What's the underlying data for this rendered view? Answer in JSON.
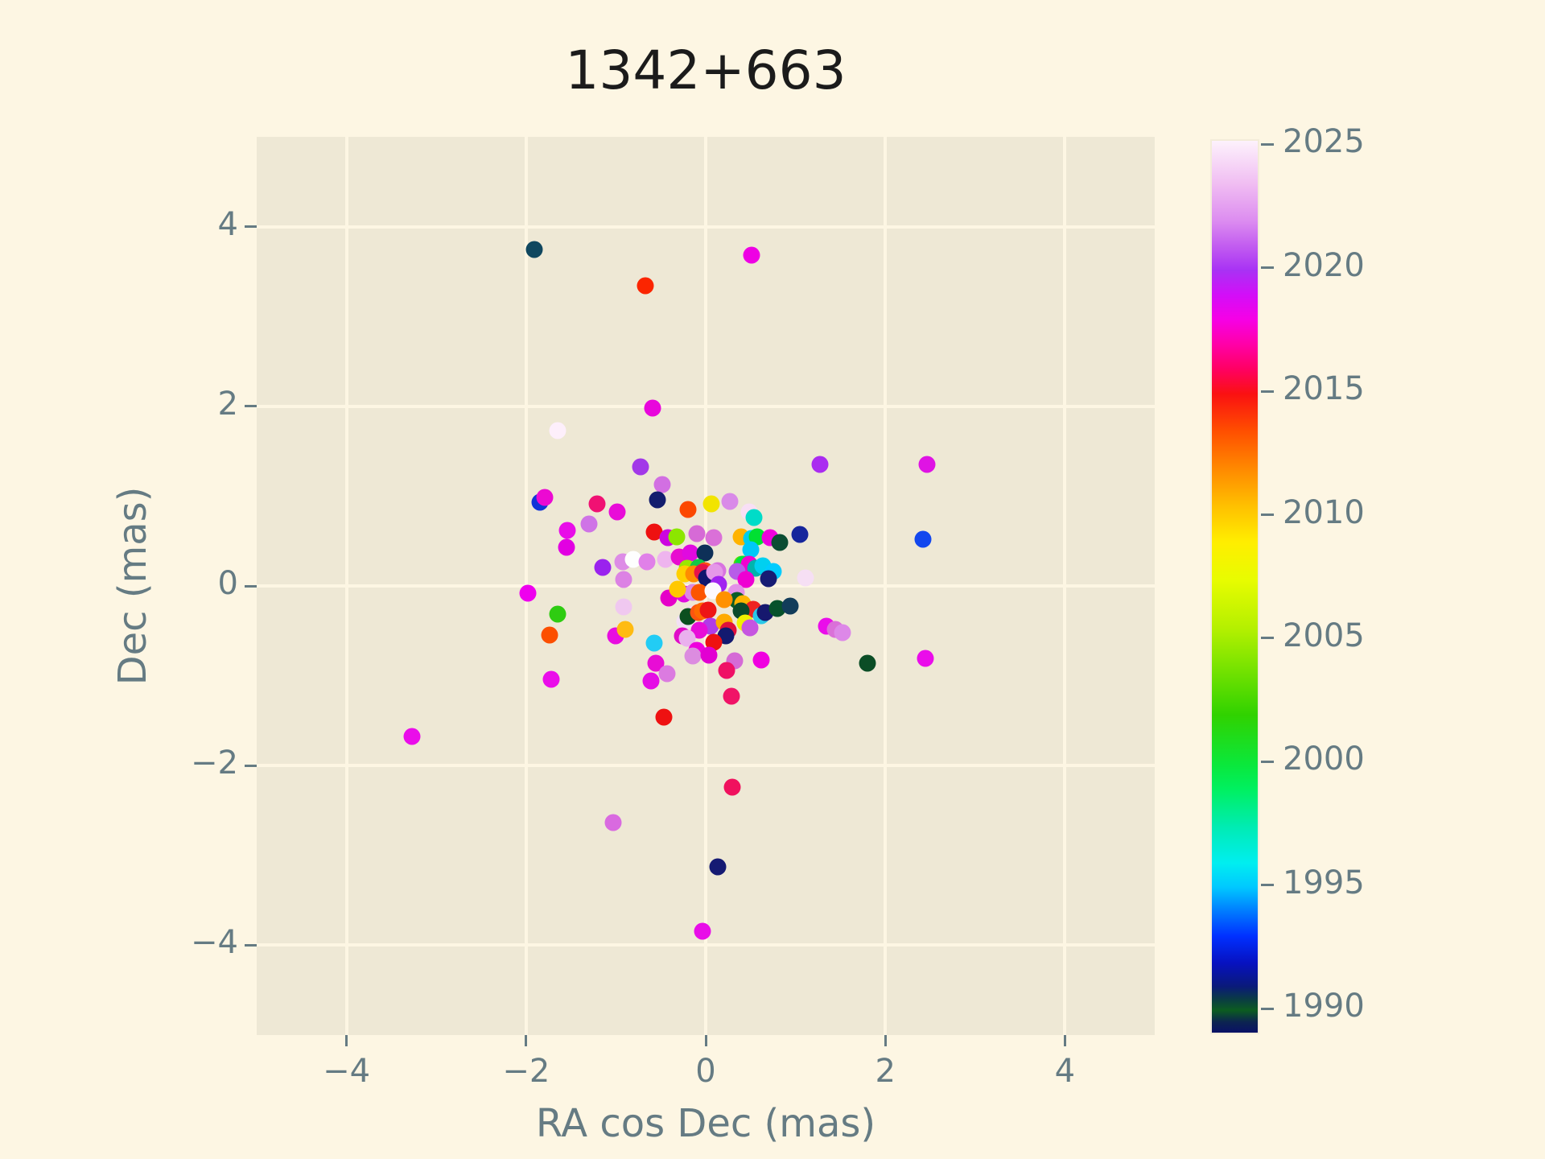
{
  "title": "1342+663",
  "style": {
    "figure_bg": "#fdf6e3",
    "axes_bg": "#eee8d5",
    "grid_color": "#fdf6e3",
    "text_color": "#657b83",
    "title_color": "#1b1b1b"
  },
  "chart_data": {
    "type": "scatter",
    "title": "1342+663",
    "xlabel": "RA cos Dec (mas)",
    "ylabel": "Dec (mas)",
    "xlim": [
      -5,
      5
    ],
    "ylim": [
      -5,
      5
    ],
    "x_ticks": [
      -4,
      -2,
      0,
      2,
      4
    ],
    "y_ticks": [
      -4,
      -2,
      0,
      2,
      4
    ],
    "grid": true,
    "legend_position": "none",
    "marker_size_px": 21,
    "colorbar": {
      "ticks": [
        2025,
        2020,
        2015,
        2010,
        2005,
        2000,
        1995,
        1990
      ],
      "range": [
        1989.1,
        2025.2
      ],
      "gradient_stops": [
        [
          0,
          "#0a1166"
        ],
        [
          1.2,
          "#0c2450"
        ],
        [
          2.5,
          "#0c5c20"
        ],
        [
          3.8,
          "#0a3a46"
        ],
        [
          5.2,
          "#0a1a7a"
        ],
        [
          7.8,
          "#0711c0"
        ],
        [
          10.8,
          "#0030ff"
        ],
        [
          13.5,
          "#0078ff"
        ],
        [
          16.3,
          "#00c8ff"
        ],
        [
          19,
          "#00eef0"
        ],
        [
          23,
          "#00ecb4"
        ],
        [
          27.3,
          "#00f060"
        ],
        [
          30,
          "#0ae83c"
        ],
        [
          35.6,
          "#30d200"
        ],
        [
          41.2,
          "#7ce400"
        ],
        [
          45.3,
          "#b4f000"
        ],
        [
          50.8,
          "#e8fc00"
        ],
        [
          55,
          "#ffee00"
        ],
        [
          59.2,
          "#ffbe00"
        ],
        [
          63.3,
          "#ff8800"
        ],
        [
          67.5,
          "#ff4e00"
        ],
        [
          71.6,
          "#fa1111"
        ],
        [
          74.4,
          "#ff0062"
        ],
        [
          77.2,
          "#ff00a8"
        ],
        [
          80,
          "#f600e6"
        ],
        [
          82.7,
          "#d30ef8"
        ],
        [
          85.5,
          "#a832f4"
        ],
        [
          88.3,
          "#c35ef0"
        ],
        [
          91,
          "#dc8cf0"
        ],
        [
          95.1,
          "#f0bcf2"
        ],
        [
          100,
          "#fdf2fc"
        ]
      ]
    },
    "points": [
      [
        -1.91,
        3.75,
        "#10475f"
      ],
      [
        -0.67,
        3.34,
        "#fb2500"
      ],
      [
        0.51,
        3.68,
        "#ee00e4"
      ],
      [
        -0.59,
        1.98,
        "#e806dc"
      ],
      [
        -1.65,
        1.73,
        "#fdeffb"
      ],
      [
        -0.73,
        1.33,
        "#a238e8"
      ],
      [
        1.27,
        1.35,
        "#aa2cf0"
      ],
      [
        2.46,
        1.35,
        "#df13e4"
      ],
      [
        -0.48,
        1.13,
        "#d26fe2"
      ],
      [
        -1.85,
        0.93,
        "#1134d8"
      ],
      [
        -1.79,
        0.99,
        "#ec0ad2"
      ],
      [
        -1.21,
        0.91,
        "#f01173"
      ],
      [
        -0.54,
        0.96,
        "#131d6e"
      ],
      [
        -0.99,
        0.82,
        "#e80cd8"
      ],
      [
        -0.2,
        0.85,
        "#fc4800"
      ],
      [
        0.06,
        0.91,
        "#f2e400"
      ],
      [
        0.27,
        0.94,
        "#d98ae8"
      ],
      [
        -1.3,
        0.69,
        "#cf73e6"
      ],
      [
        -1.54,
        0.62,
        "#e80de8"
      ],
      [
        -1.55,
        0.43,
        "#e200e2"
      ],
      [
        0.48,
        0.82,
        "#f8dff5"
      ],
      [
        0.54,
        0.76,
        "#00dcc8"
      ],
      [
        -0.57,
        0.6,
        "#ee1111"
      ],
      [
        -0.42,
        0.54,
        "#cc04e0"
      ],
      [
        -0.32,
        0.55,
        "#8ce600"
      ],
      [
        -0.1,
        0.58,
        "#d66ad6"
      ],
      [
        0.09,
        0.54,
        "#da70d8"
      ],
      [
        0.39,
        0.55,
        "#ffb300"
      ],
      [
        0.51,
        0.53,
        "#00ccee"
      ],
      [
        0.57,
        0.55,
        "#00e032"
      ],
      [
        0.72,
        0.54,
        "#ee00dc"
      ],
      [
        0.82,
        0.48,
        "#0b4d33"
      ],
      [
        1.05,
        0.57,
        "#16269c"
      ],
      [
        2.42,
        0.52,
        "#1347ee"
      ],
      [
        0.5,
        0.4,
        "#00c8f8"
      ],
      [
        -1.15,
        0.21,
        "#9a22ee"
      ],
      [
        -0.92,
        0.27,
        "#dd8ce6"
      ],
      [
        -0.81,
        0.3,
        "#fefefe"
      ],
      [
        -0.65,
        0.27,
        "#e080e8"
      ],
      [
        -0.45,
        0.3,
        "#eeb4ee"
      ],
      [
        -0.3,
        0.32,
        "#e80cd0"
      ],
      [
        -0.17,
        0.37,
        "#e00ae0"
      ],
      [
        -0.01,
        0.37,
        "#0e3058"
      ],
      [
        -0.21,
        0.2,
        "#9ae800"
      ],
      [
        -0.08,
        0.21,
        "#12c848"
      ],
      [
        -0.01,
        0.17,
        "#fc5010"
      ],
      [
        0.13,
        0.17,
        "#d873e0"
      ],
      [
        0.4,
        0.24,
        "#58e000"
      ],
      [
        0.42,
        0.24,
        "#00e43c"
      ],
      [
        0.48,
        0.24,
        "#f000d0"
      ],
      [
        0.56,
        0.2,
        "#00b4ac"
      ],
      [
        0.64,
        0.22,
        "#00d0f0"
      ],
      [
        0.75,
        0.16,
        "#00ccff"
      ],
      [
        0.7,
        0.08,
        "#171c74"
      ],
      [
        1.11,
        0.09,
        "#f6dff4"
      ],
      [
        0.35,
        0.16,
        "#b75ce8"
      ],
      [
        0.45,
        0.07,
        "#ee00d2"
      ],
      [
        -0.23,
        0.13,
        "#ffd000"
      ],
      [
        -0.13,
        0.13,
        "#ff8c00"
      ],
      [
        -0.04,
        0.15,
        "#e8124a"
      ],
      [
        0.01,
        0.09,
        "#11166e"
      ],
      [
        0.1,
        0.15,
        "#e598e8"
      ],
      [
        0.14,
        0.02,
        "#a122f0"
      ],
      [
        -0.24,
        -0.09,
        "#e00de0"
      ],
      [
        -0.14,
        -0.07,
        "#dd88e0"
      ],
      [
        -0.07,
        -0.07,
        "#fc5500"
      ],
      [
        0.08,
        -0.05,
        "#fdf8fd"
      ],
      [
        0.34,
        -0.07,
        "#e391e8"
      ],
      [
        0.35,
        -0.16,
        "#0a5c28"
      ],
      [
        0.21,
        -0.15,
        "#ff9100"
      ],
      [
        0.41,
        -0.2,
        "#ffb400"
      ],
      [
        -1.98,
        -0.08,
        "#ee00ee"
      ],
      [
        -0.91,
        0.07,
        "#dc82e4"
      ],
      [
        -0.41,
        -0.13,
        "#e500c8"
      ],
      [
        -0.31,
        -0.04,
        "#ffc800"
      ],
      [
        -0.15,
        -0.31,
        "#f5d8ee"
      ],
      [
        -0.23,
        -0.39,
        "#f2e0f5"
      ],
      [
        -0.2,
        -0.34,
        "#0b4f1f"
      ],
      [
        -0.08,
        -0.3,
        "#fc5510"
      ],
      [
        -0.04,
        -0.28,
        "#ff6a00"
      ],
      [
        0.03,
        -0.27,
        "#ee1515"
      ],
      [
        0.53,
        -0.26,
        "#ee2222"
      ],
      [
        0.39,
        -0.28,
        "#0a4a2a"
      ],
      [
        0.62,
        -0.33,
        "#2ac8e8"
      ],
      [
        0.66,
        -0.3,
        "#16186e"
      ],
      [
        0.8,
        -0.25,
        "#07512b"
      ],
      [
        0.94,
        -0.22,
        "#123c5a"
      ],
      [
        0.05,
        -0.45,
        "#b03ce8"
      ],
      [
        0.44,
        -0.41,
        "#f0f000"
      ],
      [
        0.49,
        -0.47,
        "#c655e0"
      ],
      [
        0.21,
        -0.4,
        "#ffaa00"
      ],
      [
        0.25,
        -0.49,
        "#e0103c"
      ],
      [
        0.22,
        -0.56,
        "#131a70"
      ],
      [
        0.09,
        -0.63,
        "#ee1111"
      ],
      [
        -0.07,
        -0.49,
        "#e80dd8"
      ],
      [
        -0.26,
        -0.56,
        "#e00cc8"
      ],
      [
        -0.21,
        -0.58,
        "#eab0ee"
      ],
      [
        -0.1,
        -0.72,
        "#ee00dd"
      ],
      [
        -0.14,
        -0.78,
        "#dc8ce0"
      ],
      [
        0.04,
        -0.77,
        "#e200d2"
      ],
      [
        0.32,
        -0.83,
        "#d56ad6"
      ],
      [
        0.62,
        -0.82,
        "#f000e0"
      ],
      [
        0.23,
        -0.94,
        "#ef1166"
      ],
      [
        -1.0,
        -0.56,
        "#e80de0"
      ],
      [
        -0.9,
        -0.48,
        "#ffbb11"
      ],
      [
        -0.91,
        -0.23,
        "#f0c8f0"
      ],
      [
        -0.57,
        -0.64,
        "#22ccf5"
      ],
      [
        -1.65,
        -0.31,
        "#2ecc11"
      ],
      [
        -1.74,
        -0.55,
        "#fc4f00"
      ],
      [
        -1.72,
        -1.04,
        "#ea0dea"
      ],
      [
        -0.56,
        -0.86,
        "#e80dd5"
      ],
      [
        -0.43,
        -0.98,
        "#db7be0"
      ],
      [
        -0.61,
        -1.06,
        "#e50ce5"
      ],
      [
        -0.47,
        -1.46,
        "#ee1111"
      ],
      [
        0.29,
        -1.23,
        "#f01367"
      ],
      [
        1.34,
        -0.45,
        "#ea0dea"
      ],
      [
        1.44,
        -0.48,
        "#da70d8"
      ],
      [
        1.52,
        -0.52,
        "#dd88e8"
      ],
      [
        1.8,
        -0.86,
        "#0b4d26"
      ],
      [
        2.45,
        -0.81,
        "#ea0dea"
      ],
      [
        -3.27,
        -1.68,
        "#ea0dea"
      ],
      [
        0.3,
        -2.24,
        "#f0115e"
      ],
      [
        -1.03,
        -2.63,
        "#d96ae0"
      ],
      [
        0.13,
        -3.13,
        "#151a73"
      ],
      [
        -0.04,
        -3.84,
        "#e80de8"
      ]
    ]
  }
}
